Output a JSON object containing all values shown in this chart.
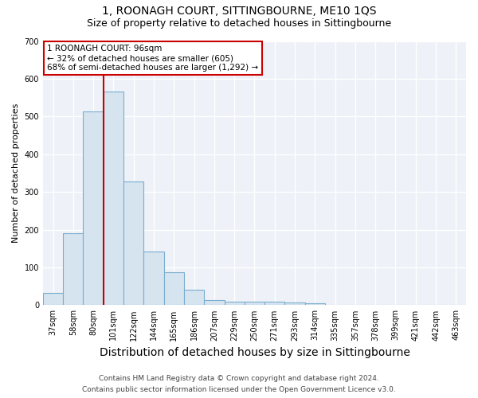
{
  "title": "1, ROONAGH COURT, SITTINGBOURNE, ME10 1QS",
  "subtitle": "Size of property relative to detached houses in Sittingbourne",
  "xlabel": "Distribution of detached houses by size in Sittingbourne",
  "ylabel": "Number of detached properties",
  "categories": [
    "37sqm",
    "58sqm",
    "80sqm",
    "101sqm",
    "122sqm",
    "144sqm",
    "165sqm",
    "186sqm",
    "207sqm",
    "229sqm",
    "250sqm",
    "271sqm",
    "293sqm",
    "314sqm",
    "335sqm",
    "357sqm",
    "378sqm",
    "399sqm",
    "421sqm",
    "442sqm",
    "463sqm"
  ],
  "values": [
    32,
    191,
    513,
    566,
    327,
    143,
    87,
    41,
    13,
    9,
    9,
    10,
    7,
    5,
    0,
    0,
    0,
    0,
    0,
    0,
    0
  ],
  "bar_color": "#d6e4f0",
  "bar_edge_color": "#7aadcf",
  "vline_x_index": 3,
  "vline_color": "#cc0000",
  "annotation_line1": "1 ROONAGH COURT: 96sqm",
  "annotation_line2": "← 32% of detached houses are smaller (605)",
  "annotation_line3": "68% of semi-detached houses are larger (1,292) →",
  "annotation_box_color": "#ffffff",
  "annotation_box_edge": "#cc0000",
  "ylim": [
    0,
    700
  ],
  "yticks": [
    0,
    100,
    200,
    300,
    400,
    500,
    600,
    700
  ],
  "footer_line1": "Contains HM Land Registry data © Crown copyright and database right 2024.",
  "footer_line2": "Contains public sector information licensed under the Open Government Licence v3.0.",
  "title_fontsize": 10,
  "subtitle_fontsize": 9,
  "xlabel_fontsize": 9,
  "ylabel_fontsize": 8,
  "tick_fontsize": 7,
  "annotation_fontsize": 7.5,
  "footer_fontsize": 6.5,
  "bg_color": "#ffffff",
  "plot_bg_color": "#eef2f8"
}
